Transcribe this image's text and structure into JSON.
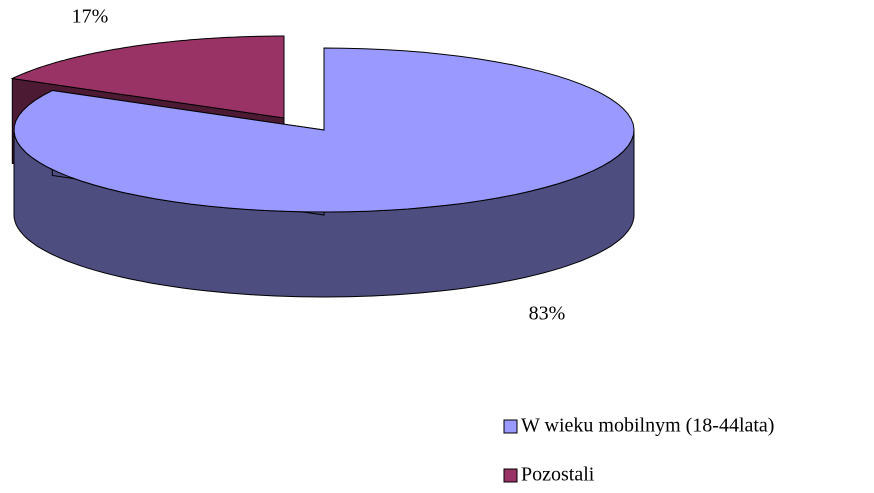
{
  "chart_data": {
    "type": "pie3d",
    "categories": [
      "W wieku mobilnym (18-44lata)",
      "Pozostali"
    ],
    "values": [
      83,
      17
    ],
    "value_labels": [
      "83%",
      "17%"
    ],
    "colors": [
      "#9999ff",
      "#993366"
    ],
    "legend": "bottom-right"
  }
}
